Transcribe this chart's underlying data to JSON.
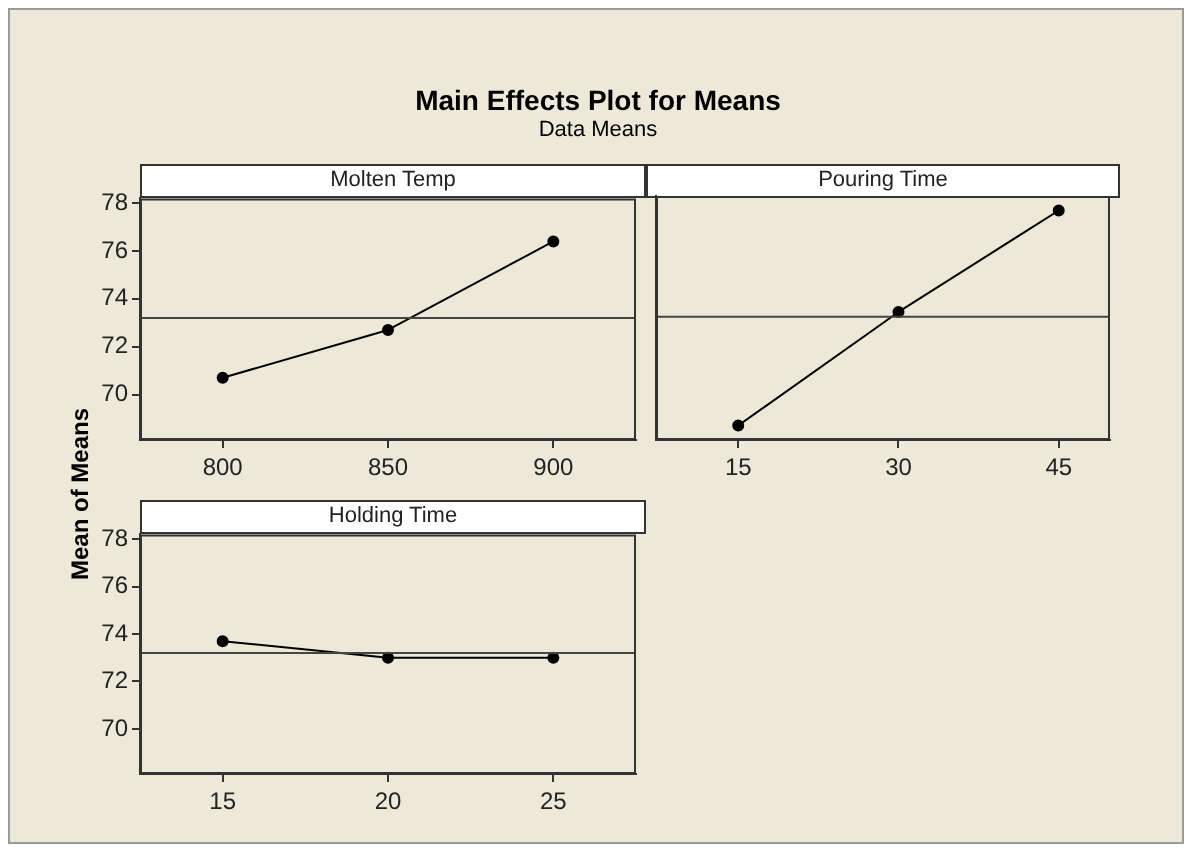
{
  "chart_data": [
    {
      "type": "line",
      "title": "Main Effects Plot for Means",
      "subtitle": "Data Means",
      "ylabel": "Mean of Means",
      "xlabel": "Molten Temp",
      "x": [
        800,
        850,
        900
      ],
      "values": [
        70.7,
        72.7,
        76.4
      ],
      "color": "#000000",
      "marker": "circle",
      "xlim": [
        775,
        925
      ],
      "xticks": [
        800,
        850,
        900
      ],
      "ylim": [
        68.1,
        78.2
      ],
      "yticks": [
        70,
        72,
        74,
        76,
        78
      ],
      "ref_lines": [
        {
          "axis": "y",
          "value": 73.2
        }
      ]
    },
    {
      "type": "line",
      "xlabel": "Pouring Time",
      "x": [
        15,
        30,
        45
      ],
      "values": [
        68.7,
        73.4,
        77.6
      ],
      "color": "#000000",
      "marker": "circle",
      "xlim": [
        7.3,
        49.8
      ],
      "xticks": [
        15,
        30,
        45
      ],
      "ylim": [
        68.1,
        78.2
      ],
      "yticks": [
        70,
        72,
        74,
        76,
        78
      ],
      "tick_labels": "x",
      "ref_lines": [
        {
          "axis": "y",
          "value": 73.2
        }
      ]
    },
    {
      "type": "line",
      "xlabel": "Holding Time",
      "x": [
        15,
        20,
        25
      ],
      "values": [
        73.7,
        73.0,
        73.0
      ],
      "color": "#000000",
      "marker": "circle",
      "xlim": [
        12.5,
        27.5
      ],
      "xticks": [
        15,
        20,
        25
      ],
      "ylim": [
        68.1,
        78.2
      ],
      "yticks": [
        70,
        72,
        74,
        76,
        78
      ],
      "ref_lines": [
        {
          "axis": "y",
          "value": 73.2
        }
      ]
    }
  ]
}
